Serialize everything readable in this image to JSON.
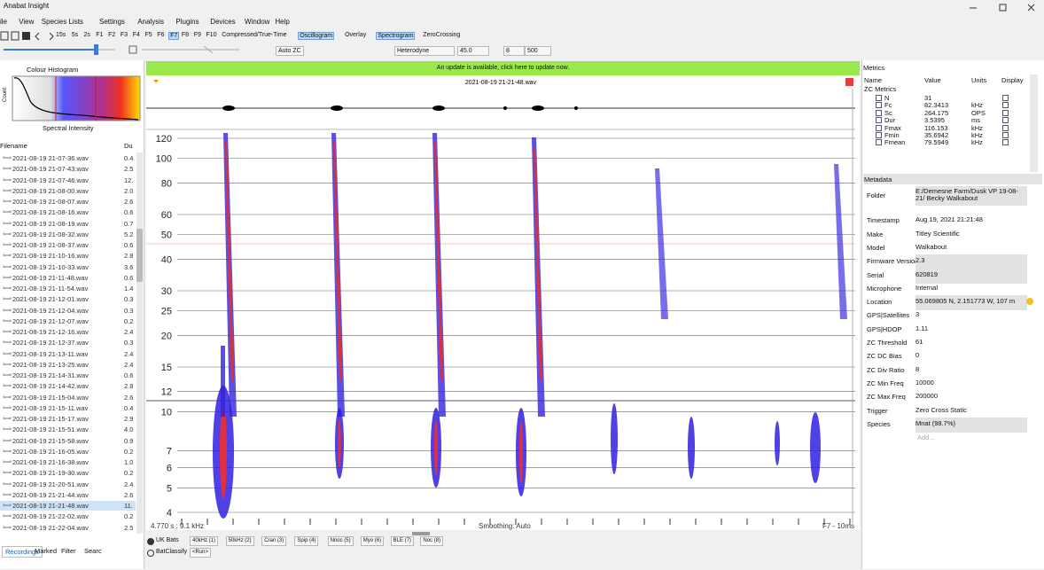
{
  "window": {
    "title": "Anabat Insight"
  },
  "menu": [
    "ile",
    "View",
    "Species Lists",
    "Settings",
    "Analysis",
    "Plugins",
    "Devices",
    "Window",
    "Help"
  ],
  "toolbar": {
    "buttons": [
      "15s",
      "5s",
      "2s",
      "F1",
      "F2",
      "F3",
      "F4",
      "F5",
      "F6",
      "F7",
      "F8",
      "F9",
      "F10",
      "Compressed/True-Time",
      "Oscillogram",
      "Overlay",
      "Spectrogram",
      "ZeroCrossing"
    ],
    "active": [
      9,
      14,
      16
    ],
    "auto_zc": "Auto ZC",
    "mode": "Heterodyne",
    "het_freq": "45.0",
    "div": "8",
    "rate": "500"
  },
  "histogram": {
    "title": "Colour Histogram",
    "x_label": "Spectral Intensity",
    "y_label": "Count"
  },
  "file_list": {
    "headers": [
      "Filename",
      "Du"
    ],
    "selected": 32,
    "rows": [
      [
        "2021-08-19 21-07-36.wav",
        "0.4"
      ],
      [
        "2021-08-19 21-07-43.wav",
        "2.5"
      ],
      [
        "2021-08-19 21-07-46.wav",
        "12."
      ],
      [
        "2021-08-19 21-08-00.wav",
        "2.0"
      ],
      [
        "2021-08-19 21-08-07.wav",
        "2.6"
      ],
      [
        "2021-08-19 21-08-16.wav",
        "0.6"
      ],
      [
        "2021-08-19 21-08-19.wav",
        "0.7"
      ],
      [
        "2021-08-19 21-08-32.wav",
        "5.2"
      ],
      [
        "2021-08-19 21-08-37.wav",
        "0.6"
      ],
      [
        "2021-08-19 21-10-16.wav",
        "2.8"
      ],
      [
        "2021-08-19 21-10-33.wav",
        "3.6"
      ],
      [
        "2021-08-19 21-11-48.wav",
        "0.6"
      ],
      [
        "2021-08-19 21-11-54.wav",
        "1.4"
      ],
      [
        "2021-08-19 21-12-01.wav",
        "0.3"
      ],
      [
        "2021-08-19 21-12-04.wav",
        "0.3"
      ],
      [
        "2021-08-19 21-12-07.wav",
        "0.2"
      ],
      [
        "2021-08-19 21-12-16.wav",
        "2.4"
      ],
      [
        "2021-08-19 21-12-37.wav",
        "0.3"
      ],
      [
        "2021-08-19 21-13-11.wav",
        "2.4"
      ],
      [
        "2021-08-19 21-13-25.wav",
        "2.4"
      ],
      [
        "2021-08-19 21-14-31.wav",
        "0.6"
      ],
      [
        "2021-08-19 21-14-42.wav",
        "2.8"
      ],
      [
        "2021-08-19 21-15-04.wav",
        "2.6"
      ],
      [
        "2021-08-19 21-15-11.wav",
        "0.4"
      ],
      [
        "2021-08-19 21-15-17.wav",
        "2.9"
      ],
      [
        "2021-08-19 21-15-51.wav",
        "4.0"
      ],
      [
        "2021-08-19 21-15-58.wav",
        "0.9"
      ],
      [
        "2021-08-19 21-16-05.wav",
        "0.2"
      ],
      [
        "2021-08-19 21-16-38.wav",
        "1.0"
      ],
      [
        "2021-08-19 21-19-30.wav",
        "0.2"
      ],
      [
        "2021-08-19 21-20-51.wav",
        "2.4"
      ],
      [
        "2021-08-19 21-21-44.wav",
        "2.6"
      ],
      [
        "2021-08-19 21-21-48.wav",
        "11."
      ],
      [
        "2021-08-19 21-22-02.wav",
        "0.2"
      ],
      [
        "2021-08-19 21-22-04.wav",
        "2.5"
      ]
    ]
  },
  "tabs": [
    "Recordings",
    "Marked",
    "Filter",
    "Searc"
  ],
  "update_banner": "An update is available, click here to update now.",
  "spectrogram": {
    "file": "2021-08-19 21-21-48.wav",
    "y_labels": [
      120,
      100,
      80,
      60,
      50,
      40,
      30,
      25,
      20,
      15,
      12,
      10,
      7,
      6,
      5,
      4
    ],
    "cursor": "4.770 s : 9.1 kHz",
    "smoothing": "Smoothing: Auto",
    "resolution": "F7 - 10ms"
  },
  "classifier": {
    "options": [
      "UK Bats",
      "BatClassify"
    ],
    "buttons": [
      "40kHz (1)",
      "50kHz (2)",
      "Cran (3)",
      "Spip (4)",
      "Nnoc (5)",
      "Myo (6)",
      "BLE (7)",
      "Noc (8)"
    ],
    "run": "<Run>"
  },
  "metrics": {
    "title": "Metrics",
    "headers": [
      "Name",
      "Value",
      "Units",
      "Display"
    ],
    "group": "ZC Metrics",
    "rows": [
      {
        "name": "N",
        "value": "31"
      },
      {
        "name": "Fc",
        "value": "82.3413",
        "units": "kHz"
      },
      {
        "name": "Sc",
        "value": "264.175",
        "units": "OPS"
      },
      {
        "name": "Dur",
        "value": "3.5395",
        "units": "ms"
      },
      {
        "name": "Fmax",
        "value": "116.153",
        "units": "kHz"
      },
      {
        "name": "Fmin",
        "value": "35.6942",
        "units": "kHz"
      },
      {
        "name": "Fmean",
        "value": "79.5949",
        "units": "kHz"
      }
    ]
  },
  "metadata": {
    "title": "Metadata",
    "rows": [
      [
        "Folder",
        "E:/Demesne Farm/Dusk VP 19-08-21/ Becky Walkabout"
      ],
      [
        "Timestamp",
        "Aug 19, 2021 21:21:48"
      ],
      [
        "Make",
        "Titley Scientific"
      ],
      [
        "Model",
        "Walkabout"
      ],
      [
        "Firmware Version",
        "2.3"
      ],
      [
        "Serial",
        "620819"
      ],
      [
        "Microphone",
        "Internal"
      ],
      [
        "Location",
        "55.069805 N, 2.151773 W, 107 m"
      ],
      [
        "GPS|Satellites",
        "3"
      ],
      [
        "GPS|HDOP",
        "1.11"
      ],
      [
        "ZC Threshold",
        "61"
      ],
      [
        "ZC DC Bias",
        "0"
      ],
      [
        "ZC Div Ratio",
        "8"
      ],
      [
        "ZC Min Freq",
        "10000"
      ],
      [
        "ZC Max Freq",
        "200000"
      ],
      [
        "Trigger",
        "Zero Cross Static"
      ],
      [
        "Species",
        "Mnat (98.7%)"
      ]
    ],
    "add": "Add..."
  }
}
